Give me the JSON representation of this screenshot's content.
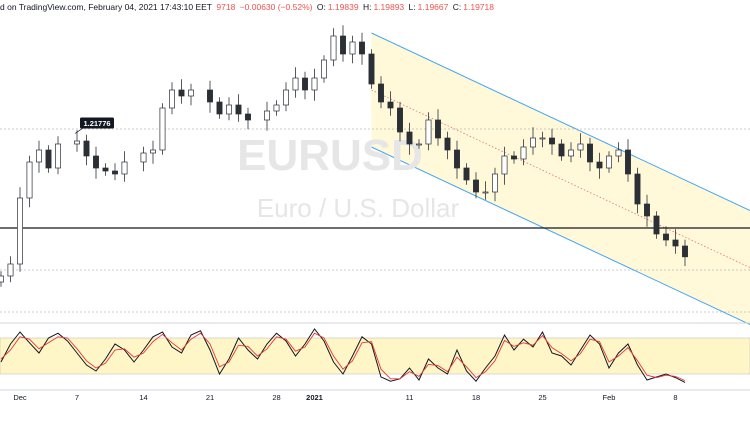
{
  "header": {
    "source": "d on TradingView.com, February 04, 2021 17:43:10 EET",
    "last": "9718",
    "change": "−0.00630 (−0.52%)",
    "o_label": "O:",
    "o_value": "1.19839",
    "h_label": "H:",
    "h_value": "1.19893",
    "l_label": "L:",
    "l_value": "1.19667",
    "c_label": "C:",
    "c_value": "1.19718"
  },
  "watermark": {
    "symbol": "EURUSD",
    "name": "Euro / U.S. Dollar"
  },
  "colors": {
    "up": "#26a69a",
    "down": "#ef5350",
    "candle": "#2b2f36",
    "channel_line": "#42a5f5",
    "channel_fill": "#fff8d9",
    "band_fill": "#fff6c8",
    "k_line": "#131722",
    "d_line": "#e53935",
    "support_line": "#131722"
  },
  "chart_data": [
    {
      "type": "candlestick",
      "title": "",
      "xlabel": "",
      "ylabel": "",
      "ylim": [
        1.187,
        1.237
      ],
      "x_tick_labels": [
        "Dec",
        "7",
        "14",
        "21",
        "28",
        "2021",
        "11",
        "18",
        "25",
        "Feb",
        "8"
      ],
      "x_tick_days": [
        0,
        6,
        13,
        20,
        27,
        31,
        41,
        48,
        55,
        62,
        69
      ],
      "grid": false,
      "price_label": "1.21776",
      "price_label_value": 1.21776,
      "support_level": 1.202,
      "dotted_levels": [
        1.2185,
        1.195,
        1.188
      ],
      "channel": {
        "upper_start": [
          37,
          1.2345
        ],
        "upper_end": [
          72,
          1.2085
        ],
        "lower_start": [
          37,
          1.2155
        ],
        "lower_end": [
          72,
          1.1895
        ],
        "mid_dotted": true
      },
      "closes": [
        [
          -2,
          1.194
        ],
        [
          -1,
          1.196
        ],
        [
          0,
          1.207
        ],
        [
          1,
          1.213
        ],
        [
          2,
          1.215
        ],
        [
          3,
          1.212
        ],
        [
          4,
          1.216
        ],
        [
          6,
          1.2165
        ],
        [
          7,
          1.214
        ],
        [
          8,
          1.212
        ],
        [
          9,
          1.2115
        ],
        [
          10,
          1.211
        ],
        [
          11,
          1.213
        ],
        [
          13,
          1.2145
        ],
        [
          14,
          1.215
        ],
        [
          15,
          1.222
        ],
        [
          16,
          1.225
        ],
        [
          17,
          1.224
        ],
        [
          18,
          1.225
        ],
        [
          20,
          1.223
        ],
        [
          21,
          1.221
        ],
        [
          22,
          1.2225
        ],
        [
          23,
          1.221
        ],
        [
          24,
          1.22
        ],
        [
          26,
          1.2215
        ],
        [
          27,
          1.2225
        ],
        [
          28,
          1.225
        ],
        [
          29,
          1.227
        ],
        [
          30,
          1.225
        ],
        [
          31,
          1.227
        ],
        [
          32,
          1.23
        ],
        [
          33,
          1.234
        ],
        [
          34,
          1.231
        ],
        [
          35,
          1.233
        ],
        [
          36,
          1.231
        ],
        [
          37,
          1.226
        ],
        [
          38,
          1.223
        ],
        [
          39,
          1.222
        ],
        [
          40,
          1.218
        ],
        [
          41,
          1.216
        ],
        [
          42,
          1.216
        ],
        [
          43,
          1.22
        ],
        [
          44,
          1.217
        ],
        [
          45,
          1.215
        ],
        [
          46,
          1.212
        ],
        [
          47,
          1.21
        ],
        [
          48,
          1.208
        ],
        [
          49,
          1.208
        ],
        [
          50,
          1.211
        ],
        [
          51,
          1.214
        ],
        [
          52,
          1.2135
        ],
        [
          53,
          1.2155
        ],
        [
          54,
          1.217
        ],
        [
          55,
          1.217
        ],
        [
          56,
          1.216
        ],
        [
          57,
          1.214
        ],
        [
          58,
          1.215
        ],
        [
          59,
          1.216
        ],
        [
          60,
          1.213
        ],
        [
          61,
          1.212
        ],
        [
          62,
          1.214
        ],
        [
          63,
          1.215
        ],
        [
          64,
          1.211
        ],
        [
          65,
          1.206
        ],
        [
          66,
          1.204
        ],
        [
          67,
          1.201
        ],
        [
          68,
          1.2
        ],
        [
          69,
          1.199
        ],
        [
          70,
          1.1972
        ]
      ]
    },
    {
      "type": "line",
      "title": "",
      "ylim": [
        0,
        100
      ],
      "band": [
        20,
        80
      ],
      "series": [
        {
          "values": [
            [
              -2,
              40
            ],
            [
              -1,
              70
            ],
            [
              0,
              90
            ],
            [
              1,
              72
            ],
            [
              2,
              55
            ],
            [
              3,
              80
            ],
            [
              4,
              88
            ],
            [
              5,
              75
            ],
            [
              6,
              55
            ],
            [
              7,
              35
            ],
            [
              8,
              25
            ],
            [
              9,
              45
            ],
            [
              10,
              70
            ],
            [
              11,
              60
            ],
            [
              12,
              40
            ],
            [
              13,
              60
            ],
            [
              14,
              82
            ],
            [
              15,
              90
            ],
            [
              16,
              65
            ],
            [
              17,
              55
            ],
            [
              18,
              85
            ],
            [
              19,
              92
            ],
            [
              20,
              60
            ],
            [
              21,
              20
            ],
            [
              22,
              45
            ],
            [
              23,
              80
            ],
            [
              24,
              60
            ],
            [
              25,
              45
            ],
            [
              26,
              70
            ],
            [
              27,
              88
            ],
            [
              28,
              75
            ],
            [
              29,
              50
            ],
            [
              30,
              70
            ],
            [
              31,
              95
            ],
            [
              32,
              75
            ],
            [
              33,
              40
            ],
            [
              34,
              20
            ],
            [
              35,
              50
            ],
            [
              36,
              82
            ],
            [
              37,
              70
            ],
            [
              38,
              15
            ],
            [
              39,
              8
            ],
            [
              40,
              12
            ],
            [
              41,
              30
            ],
            [
              42,
              10
            ],
            [
              43,
              45
            ],
            [
              44,
              30
            ],
            [
              45,
              20
            ],
            [
              46,
              60
            ],
            [
              47,
              25
            ],
            [
              48,
              8
            ],
            [
              49,
              30
            ],
            [
              50,
              50
            ],
            [
              51,
              85
            ],
            [
              52,
              60
            ],
            [
              53,
              78
            ],
            [
              54,
              65
            ],
            [
              55,
              90
            ],
            [
              56,
              55
            ],
            [
              57,
              50
            ],
            [
              58,
              35
            ],
            [
              59,
              60
            ],
            [
              60,
              85
            ],
            [
              61,
              70
            ],
            [
              62,
              30
            ],
            [
              63,
              55
            ],
            [
              64,
              70
            ],
            [
              65,
              35
            ],
            [
              66,
              10
            ],
            [
              67,
              15
            ],
            [
              68,
              20
            ],
            [
              69,
              14
            ],
            [
              70,
              6
            ]
          ]
        },
        {
          "values": [
            [
              -2,
              45
            ],
            [
              -1,
              60
            ],
            [
              0,
              82
            ],
            [
              1,
              78
            ],
            [
              2,
              62
            ],
            [
              3,
              72
            ],
            [
              4,
              82
            ],
            [
              5,
              80
            ],
            [
              6,
              62
            ],
            [
              7,
              42
            ],
            [
              8,
              30
            ],
            [
              9,
              38
            ],
            [
              10,
              60
            ],
            [
              11,
              62
            ],
            [
              12,
              48
            ],
            [
              13,
              55
            ],
            [
              14,
              74
            ],
            [
              15,
              86
            ],
            [
              16,
              72
            ],
            [
              17,
              60
            ],
            [
              18,
              78
            ],
            [
              19,
              88
            ],
            [
              20,
              70
            ],
            [
              21,
              32
            ],
            [
              22,
              40
            ],
            [
              23,
              68
            ],
            [
              24,
              66
            ],
            [
              25,
              50
            ],
            [
              26,
              62
            ],
            [
              27,
              82
            ],
            [
              28,
              78
            ],
            [
              29,
              58
            ],
            [
              30,
              65
            ],
            [
              31,
              88
            ],
            [
              32,
              80
            ],
            [
              33,
              50
            ],
            [
              34,
              28
            ],
            [
              35,
              42
            ],
            [
              36,
              72
            ],
            [
              37,
              74
            ],
            [
              38,
              28
            ],
            [
              39,
              12
            ],
            [
              40,
              12
            ],
            [
              41,
              24
            ],
            [
              42,
              16
            ],
            [
              43,
              36
            ],
            [
              44,
              34
            ],
            [
              45,
              24
            ],
            [
              46,
              48
            ],
            [
              47,
              32
            ],
            [
              48,
              14
            ],
            [
              49,
              24
            ],
            [
              50,
              42
            ],
            [
              51,
              76
            ],
            [
              52,
              66
            ],
            [
              53,
              72
            ],
            [
              54,
              68
            ],
            [
              55,
              84
            ],
            [
              56,
              64
            ],
            [
              57,
              54
            ],
            [
              58,
              42
            ],
            [
              59,
              54
            ],
            [
              60,
              78
            ],
            [
              61,
              74
            ],
            [
              62,
              40
            ],
            [
              63,
              50
            ],
            [
              64,
              64
            ],
            [
              65,
              42
            ],
            [
              66,
              18
            ],
            [
              67,
              14
            ],
            [
              68,
              18
            ],
            [
              69,
              16
            ],
            [
              70,
              9
            ]
          ]
        }
      ]
    }
  ]
}
